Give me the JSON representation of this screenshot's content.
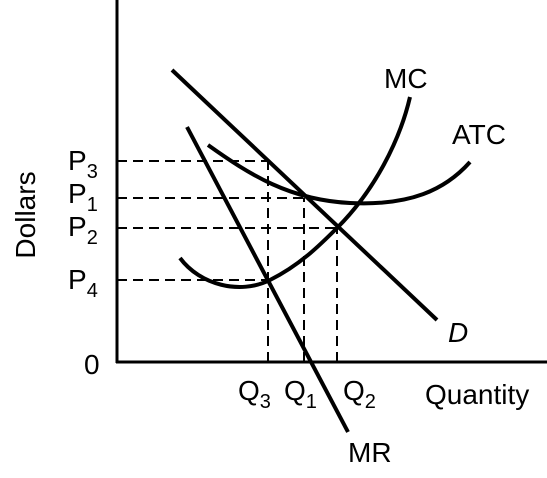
{
  "axes": {
    "y_label": "Dollars",
    "x_label": "Quantity",
    "origin": "0"
  },
  "prices": [
    {
      "main": "P",
      "sub": "3"
    },
    {
      "main": "P",
      "sub": "1"
    },
    {
      "main": "P",
      "sub": "2"
    },
    {
      "main": "P",
      "sub": "4"
    }
  ],
  "quantities": [
    {
      "main": "Q",
      "sub": "3"
    },
    {
      "main": "Q",
      "sub": "1"
    },
    {
      "main": "Q",
      "sub": "2"
    }
  ],
  "curves": {
    "mc": "MC",
    "atc": "ATC",
    "demand": "D",
    "mr": "MR"
  }
}
